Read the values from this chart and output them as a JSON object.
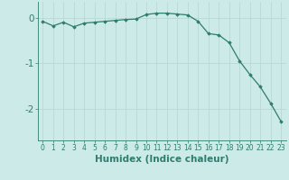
{
  "x": [
    0,
    1,
    2,
    3,
    4,
    5,
    6,
    7,
    8,
    9,
    10,
    11,
    12,
    13,
    14,
    15,
    16,
    17,
    18,
    19,
    20,
    21,
    22,
    23
  ],
  "y": [
    -0.08,
    -0.18,
    -0.1,
    -0.2,
    -0.12,
    -0.1,
    -0.08,
    -0.06,
    -0.04,
    -0.03,
    0.07,
    0.1,
    0.1,
    0.08,
    0.06,
    -0.08,
    -0.35,
    -0.38,
    -0.55,
    -0.95,
    -1.25,
    -1.52,
    -1.88,
    -2.28
  ],
  "line_color": "#2e7d6e",
  "marker": "D",
  "marker_size": 1.8,
  "bg_color": "#cceae8",
  "grid_color": "#b8d8d6",
  "xlabel": "Humidex (Indice chaleur)",
  "xlim": [
    -0.5,
    23.5
  ],
  "ylim": [
    -2.7,
    0.35
  ],
  "yticks": [
    0,
    -1,
    -2
  ],
  "xtick_labels": [
    "0",
    "1",
    "2",
    "3",
    "4",
    "5",
    "6",
    "7",
    "8",
    "9",
    "10",
    "11",
    "12",
    "13",
    "14",
    "15",
    "16",
    "17",
    "18",
    "19",
    "20",
    "21",
    "22",
    "23"
  ],
  "xlabel_fontsize": 7.5,
  "ytick_fontsize": 7.5,
  "xtick_fontsize": 5.5
}
